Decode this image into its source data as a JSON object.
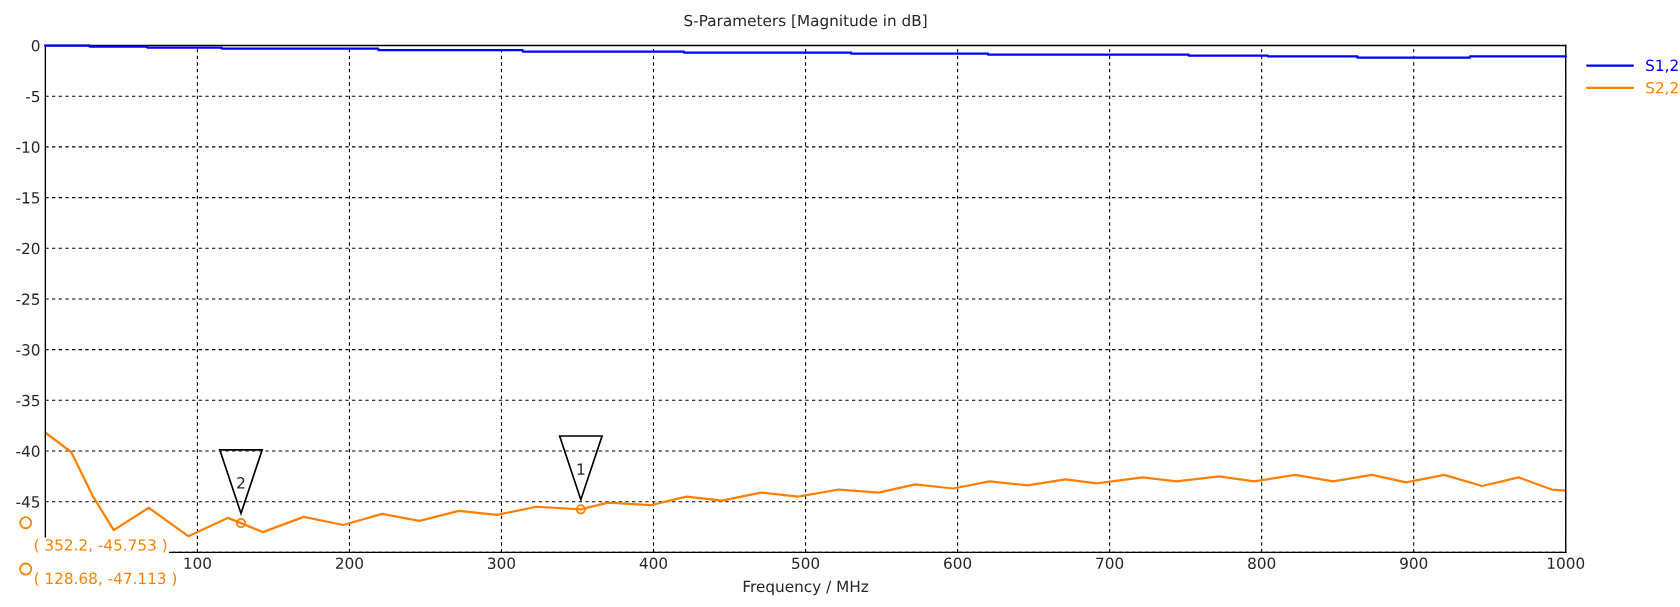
{
  "chart_data": {
    "type": "line",
    "title": "S-Parameters [Magnitude in dB]",
    "xlabel": "Frequency / MHz",
    "xlim": [
      0,
      1000
    ],
    "xticks": [
      {
        "value": 0,
        "label": null
      },
      100,
      200,
      300,
      400,
      500,
      600,
      700,
      800,
      900,
      1000
    ],
    "ylim": [
      -50,
      0
    ],
    "yticks": [
      0,
      -5,
      -10,
      -15,
      -20,
      -25,
      -30,
      -35,
      -40,
      -45,
      {
        "value": -50,
        "label": null
      }
    ],
    "grid": true,
    "legend": "top right",
    "line_style": "solid",
    "marker": "none",
    "series": [
      {
        "name": "S1,2",
        "color": "#0000ff",
        "type": "step",
        "x": [
          0,
          29,
          67,
          116,
          219,
          314,
          420,
          530,
          620,
          752,
          804,
          863,
          937,
          1000
        ],
        "values": [
          0,
          -0.1,
          -0.2,
          -0.3,
          -0.45,
          -0.6,
          -0.7,
          -0.8,
          -0.9,
          -1.0,
          -1.08,
          -1.2,
          -1.08,
          -1.08
        ]
      },
      {
        "name": "S2,2",
        "color": "#ff8000",
        "x": [
          0,
          17,
          31,
          45,
          68,
          94,
          120,
          128.68,
          143,
          170,
          196,
          221.5,
          246,
          272,
          297,
          323,
          352.2,
          370,
          398,
          421.6,
          445,
          470.6,
          495,
          522,
          548,
          572,
          597,
          621,
          646,
          671,
          691.5,
          721.6,
          744,
          772,
          795,
          822,
          847,
          872.5,
          895,
          920,
          945,
          969,
          990.7,
          1000
        ],
        "values": [
          -38.2,
          -40.1,
          -44.4,
          -47.8,
          -45.6,
          -48.4,
          -46.6,
          -47.113,
          -48.0,
          -46.5,
          -47.3,
          -46.2,
          -46.9,
          -45.9,
          -46.3,
          -45.5,
          -45.753,
          -45.1,
          -45.35,
          -44.5,
          -44.9,
          -44.1,
          -44.5,
          -43.8,
          -44.1,
          -43.3,
          -43.7,
          -43.0,
          -43.4,
          -42.8,
          -43.2,
          -42.6,
          -43.0,
          -42.5,
          -43.0,
          -42.35,
          -43.0,
          -42.35,
          -43.1,
          -42.35,
          -43.45,
          -42.6,
          -43.8,
          -43.9
        ]
      }
    ],
    "annotations": [
      {
        "text": "1",
        "x": 352.2,
        "y": -45.753
      },
      {
        "text": "2",
        "x": 128.68,
        "y": -47.113
      },
      "( 352.2, -45.753 )",
      "( 128.68, -47.113 )"
    ]
  }
}
